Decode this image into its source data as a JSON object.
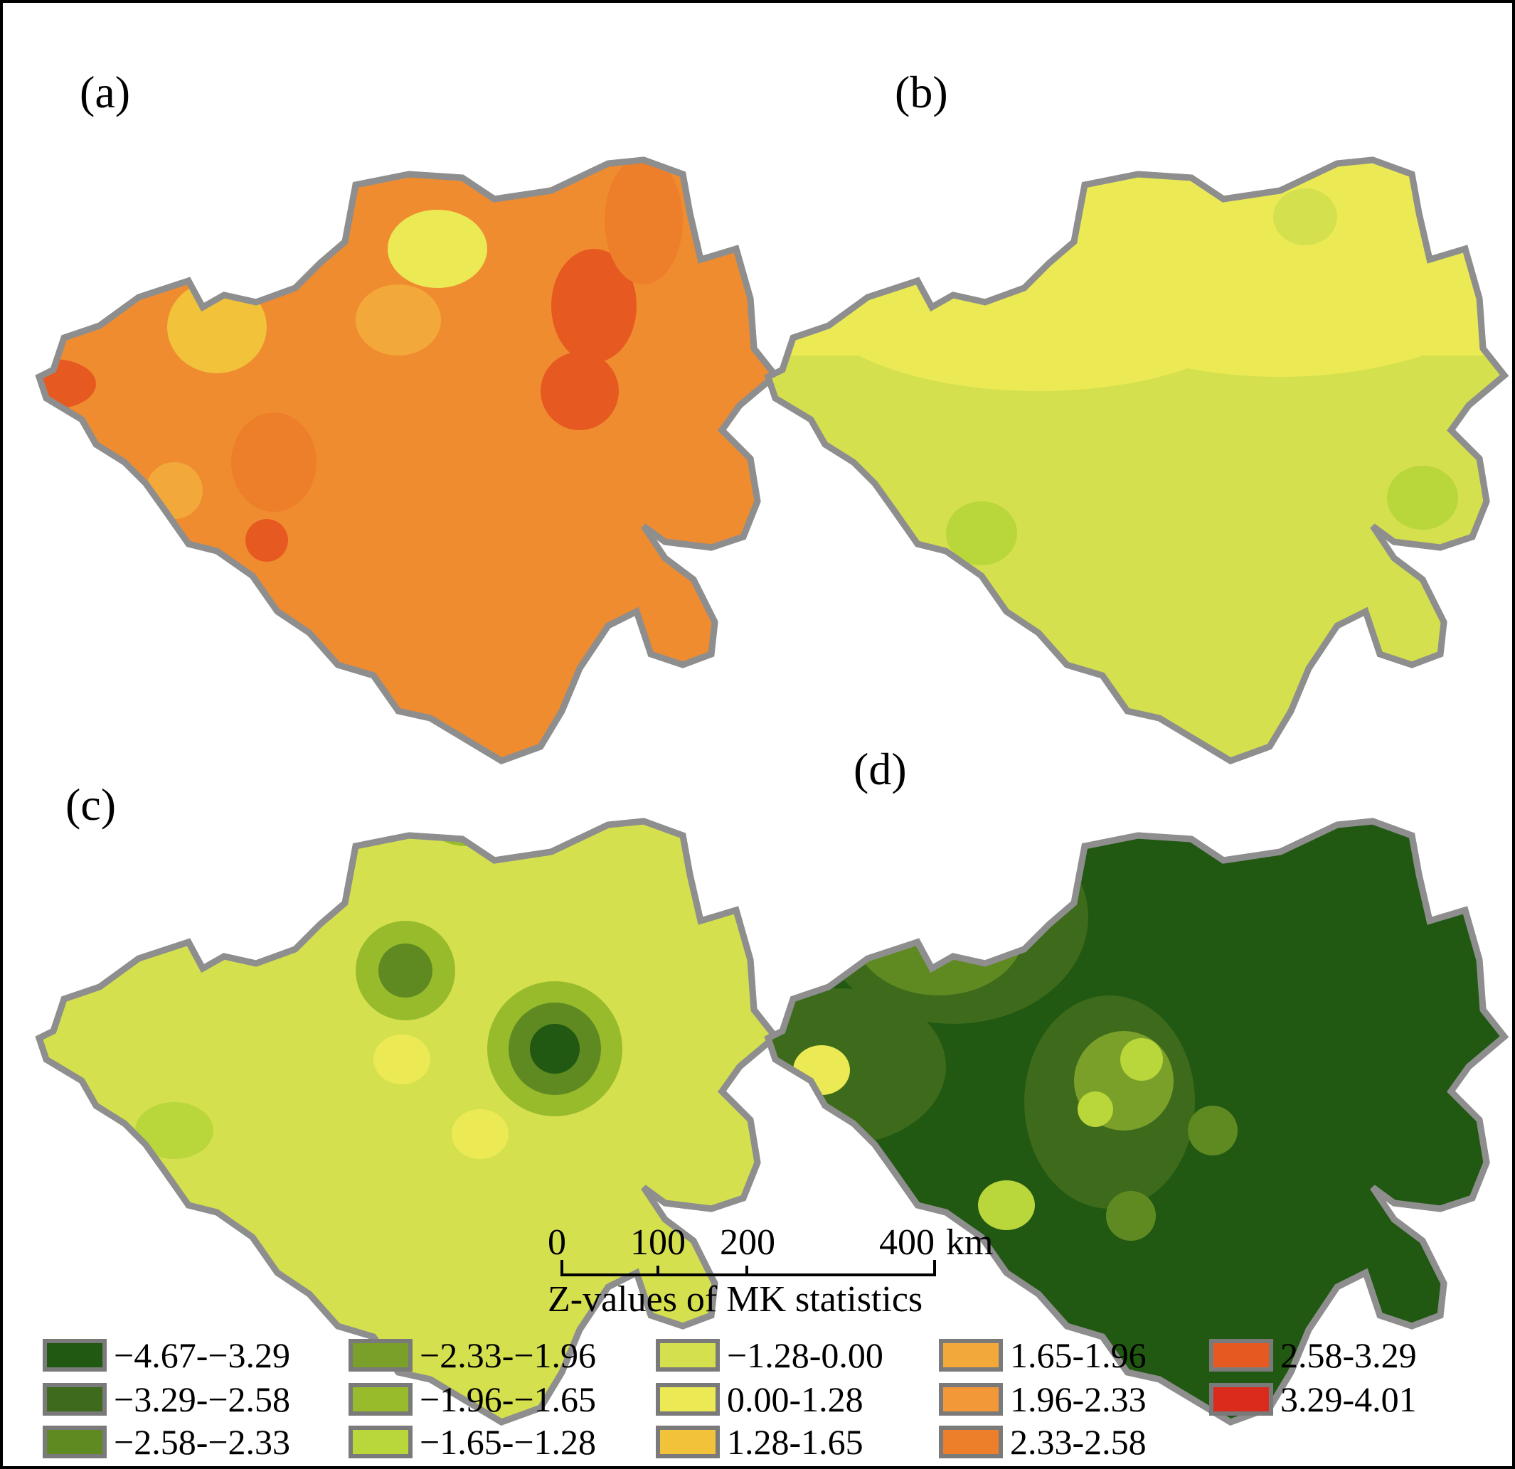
{
  "panels": [
    {
      "label": "(a)",
      "base_color": "#f08c30"
    },
    {
      "label": "(b)",
      "base_color": "#ebea55"
    },
    {
      "label": "(c)",
      "base_color": "#d5e04f"
    },
    {
      "label": "(d)",
      "base_color": "#215812"
    }
  ],
  "scale_bar": {
    "ticks": [
      "0",
      "100",
      "200",
      "400"
    ],
    "unit": "km"
  },
  "legend": {
    "title": "Z-values of MK statistics",
    "items": [
      {
        "label": "−4.67-−3.29",
        "color": "#215812"
      },
      {
        "label": "−3.29-−2.58",
        "color": "#3d6a1b"
      },
      {
        "label": "−2.58-−2.33",
        "color": "#5f8a22"
      },
      {
        "label": "−2.33-−1.96",
        "color": "#7aa02a"
      },
      {
        "label": "−1.96-−1.65",
        "color": "#98bb2c"
      },
      {
        "label": "−1.65-−1.28",
        "color": "#b9d63b"
      },
      {
        "label": "−1.28-0.00",
        "color": "#d5e04f"
      },
      {
        "label": "0.00-1.28",
        "color": "#ebea55"
      },
      {
        "label": "1.28-1.65",
        "color": "#f2c23a"
      },
      {
        "label": "1.65-1.96",
        "color": "#f3a93a"
      },
      {
        "label": "1.96-2.33",
        "color": "#f29838"
      },
      {
        "label": "2.33-2.58",
        "color": "#ee7f2a"
      },
      {
        "label": "2.58-3.29",
        "color": "#e65a21"
      },
      {
        "label": "3.29-4.01",
        "color": "#da2b1c"
      }
    ]
  }
}
